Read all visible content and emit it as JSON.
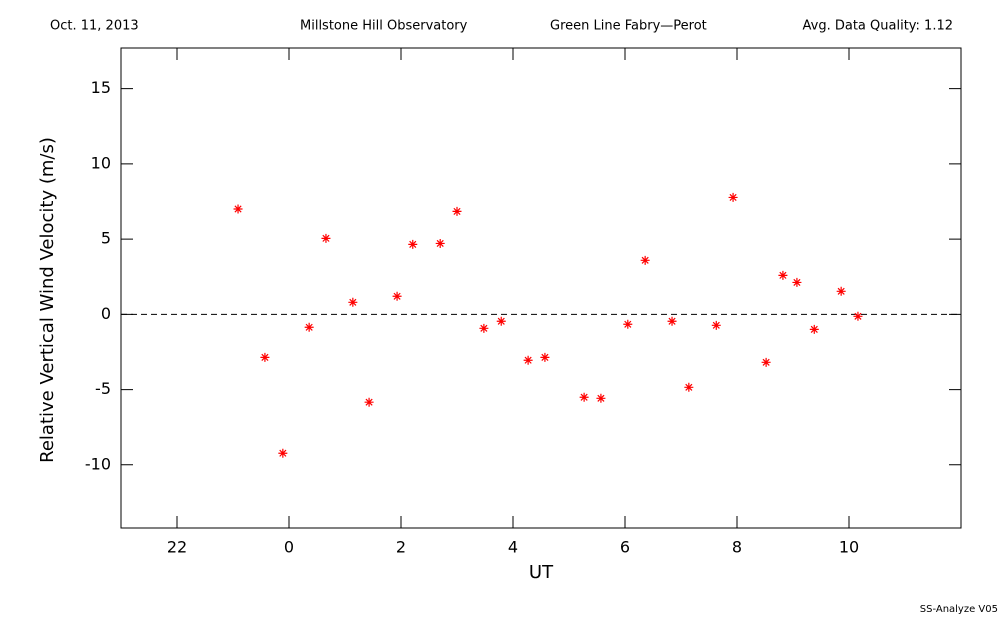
{
  "chart_data": {
    "type": "scatter",
    "header": [
      "Oct. 11, 2013",
      "Millstone Hill Observatory",
      "Green Line Fabry—Perot",
      "Avg. Data Quality: 1.12"
    ],
    "xlabel": "UT",
    "ylabel": "Relative Vertical Wind Velocity (m/s)",
    "footer": "SS-Analyze V05",
    "color": "#ff0000",
    "x": [
      -0.91,
      -0.43,
      -0.11,
      0.36,
      0.66,
      1.14,
      1.43,
      1.93,
      2.21,
      2.7,
      3.0,
      3.48,
      3.79,
      4.27,
      4.57,
      5.27,
      5.57,
      6.05,
      6.36,
      6.84,
      7.14,
      7.63,
      7.93,
      8.52,
      8.82,
      9.07,
      9.38,
      9.86,
      10.16
    ],
    "values": [
      7.0,
      -2.86,
      -9.23,
      -0.86,
      5.05,
      0.8,
      -5.84,
      1.2,
      4.65,
      4.71,
      6.84,
      -0.93,
      -0.46,
      -3.05,
      -2.86,
      -5.51,
      -5.58,
      -0.66,
      3.59,
      -0.46,
      -4.85,
      -0.73,
      7.77,
      -3.19,
      2.59,
      2.12,
      -1.0,
      1.53,
      -0.13
    ],
    "xlim": [
      -3,
      12
    ],
    "xticks": [
      {
        "value": -2,
        "label": "22"
      },
      0,
      2,
      4,
      6,
      8,
      10
    ],
    "ylim": [
      -14.2,
      17.7
    ],
    "yticks": [
      -10,
      -5,
      0,
      5,
      10,
      15
    ],
    "zero_line": true
  }
}
